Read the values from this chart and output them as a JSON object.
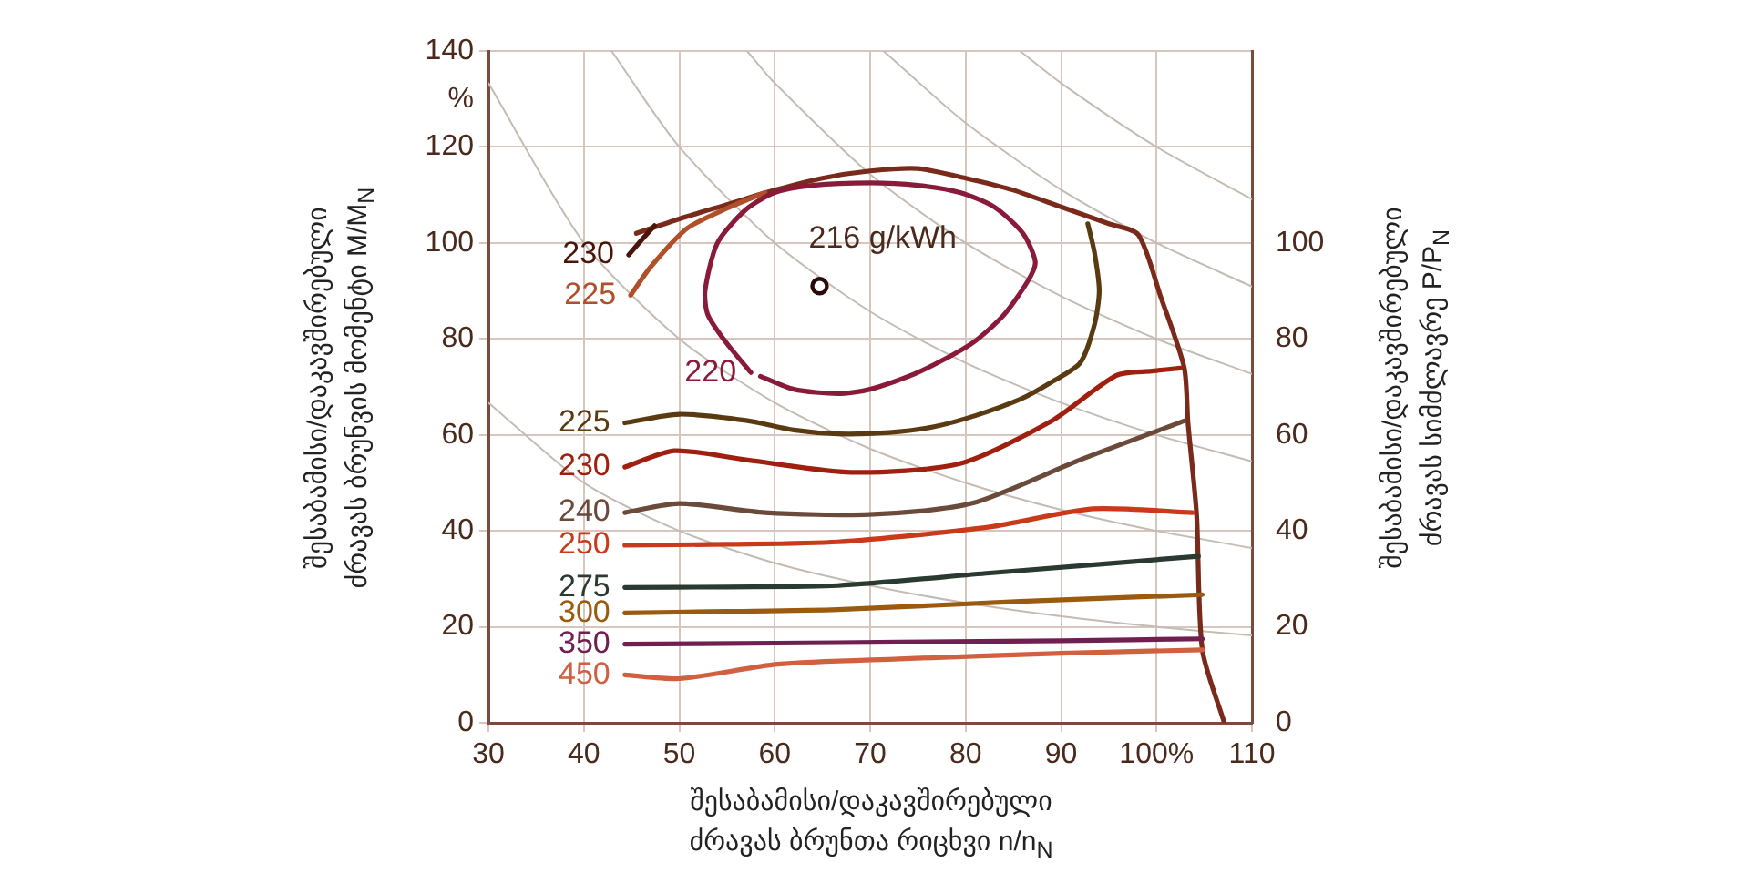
{
  "chart_data": {
    "type": "line",
    "xlabel": "შესაბამისი/დაკავშირებული\nძრავას ბრუნთა რიცხვი n/n$_{N}$",
    "ylabel": "შესაბამისი/დაკავშირებული\nძრავას ბრუნვის მომენტი M/M$_{N}$",
    "y2label": "შესაბამისი/დაკავშირებული\nძრავას სიმძლავრე P/P$_{N}$",
    "xlim": [
      30,
      110
    ],
    "xticks": [
      30,
      40,
      50,
      60,
      70,
      80,
      90,
      {
        "value": 100,
        "label": "100%"
      },
      110
    ],
    "ylim": [
      0,
      140
    ],
    "yticks": [
      0,
      20,
      40,
      60,
      80,
      100,
      120,
      {
        "value": 130,
        "label": "%"
      },
      140
    ],
    "y2lim": [
      0,
      140
    ],
    "y2ticks": [
      0,
      20,
      40,
      60,
      80,
      100
    ],
    "grid": true,
    "legend": false,
    "marker": "none",
    "line_style": "solid",
    "annotations": [
      {
        "text": "216 g/kWh",
        "x": 64.7,
        "y": 91
      }
    ],
    "series": [
      {
        "color": "#c4bcb4",
        "x": [
          30,
          40,
          50,
          60,
          70,
          80,
          90,
          100,
          110
        ],
        "values": [
          66.7,
          50,
          40,
          33.3,
          28.6,
          25,
          22.2,
          20,
          18.2
        ]
      },
      {
        "color": "#c4bcb4",
        "x": [
          30,
          40,
          50,
          60,
          70,
          80,
          90,
          100,
          110
        ],
        "values": [
          133.3,
          100,
          80,
          66.7,
          57.1,
          50,
          44.4,
          40,
          36.4
        ]
      },
      {
        "color": "#c4bcb4",
        "x": [
          42.9,
          50,
          60,
          70,
          80,
          90,
          100,
          110
        ],
        "values": [
          140,
          120,
          100,
          85.7,
          75,
          66.7,
          60,
          54.5
        ]
      },
      {
        "color": "#c4bcb4",
        "x": [
          57.1,
          60,
          70,
          80,
          90,
          100,
          110
        ],
        "values": [
          140,
          133.3,
          114.3,
          100,
          88.9,
          80,
          72.7
        ]
      },
      {
        "color": "#c4bcb4",
        "x": [
          71.4,
          80,
          90,
          100,
          110
        ],
        "values": [
          140,
          125,
          111.1,
          100,
          90.9
        ]
      },
      {
        "color": "#c4bcb4",
        "x": [
          85.7,
          90,
          100,
          110
        ],
        "values": [
          140,
          133.3,
          120,
          109.1
        ]
      },
      {
        "color": "#7a2a1a",
        "x": [
          45.5,
          50,
          55,
          60,
          65,
          70,
          75,
          80,
          85,
          90,
          95,
          98.1,
          100.4,
          102.9,
          103.3,
          104.2,
          104.8,
          107.1
        ],
        "values": [
          102,
          105,
          108,
          111,
          113.5,
          115,
          115.5,
          113.5,
          111,
          107.5,
          104,
          101.7,
          89,
          74,
          62.5,
          43.4,
          15.2,
          0
        ]
      },
      {
        "name": "230",
        "color": "#4a1408",
        "x": [
          44.7,
          46,
          47.4
        ],
        "values": [
          97.5,
          100.5,
          103.6
        ]
      },
      {
        "name": "225",
        "color": "#b0502a",
        "x": [
          44.9,
          47,
          50.8,
          55.2,
          59
        ],
        "values": [
          89.1,
          95,
          103,
          107.4,
          110.5
        ]
      },
      {
        "name": "220",
        "color": "#8a1a3a",
        "x": [
          57.5,
          55,
          53,
          52.7,
          54,
          57,
          60,
          64,
          70,
          75,
          79.4,
          83,
          86,
          87.3,
          86.5,
          84,
          80.6,
          75,
          70,
          66.6,
          62,
          58.5
        ],
        "values": [
          73,
          79,
          85,
          90,
          100,
          107,
          110.5,
          112,
          112.5,
          112,
          110.5,
          107.5,
          102,
          96,
          92,
          85,
          79,
          73,
          69.5,
          68.6,
          69.5,
          72.2
        ]
      },
      {
        "name": "225",
        "color": "#5a3a10",
        "x": [
          44.3,
          50,
          57,
          62,
          66.6,
          72,
          76.7,
          81,
          85.7,
          89,
          92,
          93.5,
          94,
          93.5,
          92.8
        ],
        "values": [
          62.5,
          64.3,
          63,
          61,
          60.2,
          60.5,
          61.7,
          64,
          67.4,
          71,
          75,
          83,
          90,
          98,
          104
        ]
      },
      {
        "name": "230",
        "color": "#a02010",
        "x": [
          44.3,
          49.5,
          57,
          68,
          79.4,
          89,
          95.8,
          99.5,
          102.5
        ],
        "values": [
          53.3,
          56.7,
          54.8,
          52.2,
          54,
          62.9,
          72.4,
          73.3,
          73.9
        ]
      },
      {
        "name": "240",
        "color": "#6a4a3a",
        "x": [
          44.3,
          50,
          59,
          69.9,
          80.6,
          92,
          102.9
        ],
        "values": [
          43.8,
          45.7,
          43.8,
          43.4,
          45.7,
          54.8,
          62.9
        ]
      },
      {
        "name": "250",
        "color": "#c83a1a",
        "x": [
          44.3,
          55,
          66.6,
          82.5,
          93.3,
          103.8
        ],
        "values": [
          37,
          37.2,
          37.7,
          40.8,
          44.6,
          43.8
        ]
      },
      {
        "name": "275",
        "color": "#2a3a30",
        "x": [
          44.3,
          55,
          66.6,
          82.5,
          104.4
        ],
        "values": [
          28.2,
          28.3,
          28.6,
          31.2,
          34.7
        ]
      },
      {
        "name": "300",
        "color": "#9a5a10",
        "x": [
          44.3,
          55,
          66.6,
          85.7,
          104.8
        ],
        "values": [
          22.9,
          23.2,
          23.6,
          25.3,
          26.7
        ]
      },
      {
        "name": "350",
        "color": "#702050",
        "x": [
          44.3,
          60,
          73,
          90,
          104.8
        ],
        "values": [
          16.4,
          16.6,
          16.8,
          17.1,
          17.5
        ]
      },
      {
        "name": "450",
        "color": "#d06040",
        "x": [
          44.3,
          50,
          60.3,
          73,
          90,
          104.8
        ],
        "values": [
          10,
          9.2,
          12.2,
          13.3,
          14.5,
          15.2
        ]
      },
      {
        "type": "scatter",
        "marker": "circle",
        "color": "#2a0a0a",
        "x": [
          64.7
        ],
        "values": [
          91
        ]
      }
    ]
  }
}
